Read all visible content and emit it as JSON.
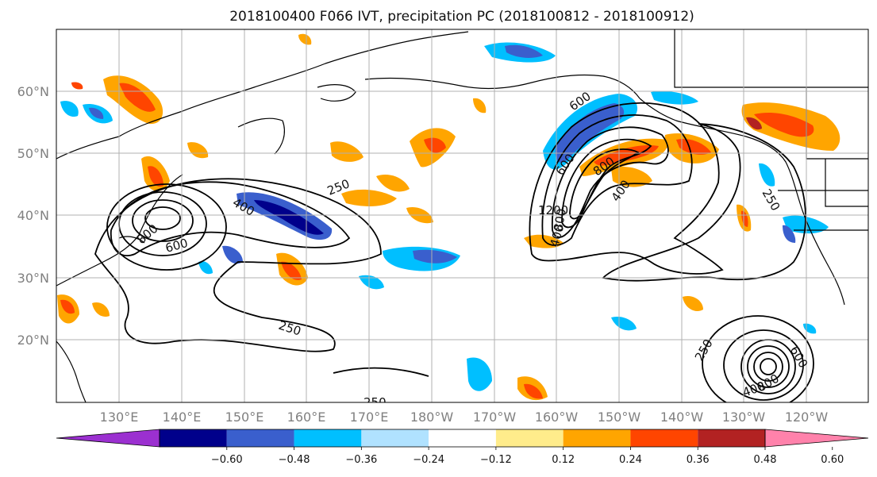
{
  "title": "2018100400 F066 IVT, precipitation PC (2018100812 - 2018100912)",
  "map": {
    "lon_ticks": [
      "130°E",
      "140°E",
      "150°E",
      "160°E",
      "170°E",
      "180°W",
      "170°W",
      "160°W",
      "150°W",
      "140°W",
      "130°W",
      "120°W"
    ],
    "lat_ticks": [
      "60°N",
      "50°N",
      "40°N",
      "30°N",
      "20°N"
    ],
    "ivt_contour_labels": [
      "250",
      "400",
      "600",
      "800",
      "1200",
      "600",
      "800",
      "400",
      "250",
      "400",
      "600",
      "800",
      "250",
      "250",
      "250",
      "400",
      "600",
      "800"
    ],
    "colors": {
      "coastline": "#000000",
      "grid": "#b0b0b0",
      "ivt_contour": "#000000"
    }
  },
  "colorbar": {
    "ticks": [
      "−0.60",
      "−0.48",
      "−0.36",
      "−0.24",
      "−0.12",
      "0.12",
      "0.24",
      "0.36",
      "0.48",
      "0.60"
    ],
    "bins": [
      {
        "color": "#9b30d0"
      },
      {
        "color": "#00008b"
      },
      {
        "color": "#3a5fcd"
      },
      {
        "color": "#00bfff"
      },
      {
        "color": "#b0e2ff"
      },
      {
        "color": "#ffffff"
      },
      {
        "color": "#ffec8b"
      },
      {
        "color": "#ffa500"
      },
      {
        "color": "#ff4500"
      },
      {
        "color": "#b22222"
      },
      {
        "color": "#ff82ab"
      }
    ]
  }
}
